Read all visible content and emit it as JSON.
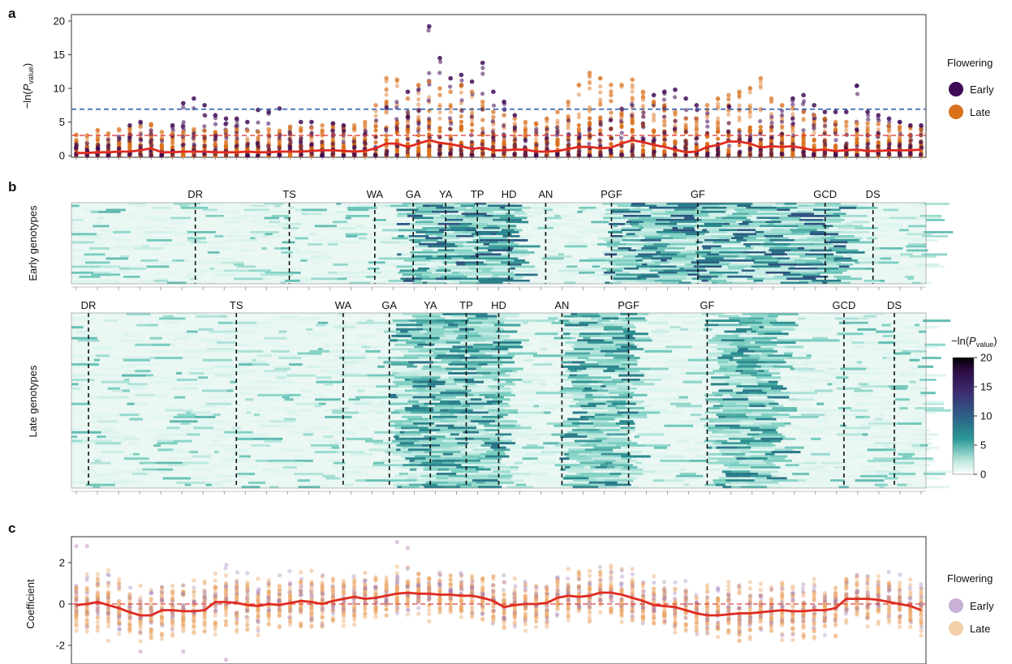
{
  "panels": {
    "a": "a",
    "b": "b",
    "c": "c"
  },
  "colors": {
    "early": "#3f0b57",
    "late": "#d9711c",
    "early_light": "#c9b0d6",
    "late_light": "#f3cfa8",
    "mean_line": "#e02b20",
    "threshold_blue": "#2f5dae",
    "threshold_red": "#e04040",
    "heatmap_stops": [
      "#ffffff",
      "#7fd0c4",
      "#2a8c8e",
      "#3e3a7a",
      "#3a0f4f",
      "#000000"
    ]
  },
  "chart_data": [
    {
      "type": "scatter",
      "id": "a",
      "ylabel": "-ln(P_value)",
      "ylim": [
        0,
        20
      ],
      "yticks": [
        0,
        5,
        10,
        15,
        20
      ],
      "n_positions": 80,
      "thresholds": {
        "blue_dashed": 6.9,
        "red_dashed": 3.0
      },
      "mean_line": [
        0.4,
        0.4,
        0.5,
        0.5,
        0.6,
        0.6,
        0.8,
        1.1,
        0.5,
        0.5,
        0.6,
        0.6,
        0.6,
        0.5,
        0.5,
        0.5,
        0.6,
        0.5,
        0.5,
        0.6,
        0.6,
        0.6,
        0.7,
        0.8,
        0.8,
        0.7,
        0.6,
        0.7,
        1.1,
        1.8,
        1.8,
        1.3,
        1.8,
        2.3,
        1.9,
        1.7,
        1.4,
        1.0,
        1.2,
        0.8,
        0.8,
        0.9,
        0.9,
        0.6,
        0.6,
        0.7,
        1.0,
        1.3,
        1.3,
        1.1,
        1.2,
        1.8,
        2.3,
        2.0,
        1.6,
        1.3,
        0.9,
        0.5,
        0.6,
        1.3,
        1.6,
        2.1,
        2.1,
        1.8,
        1.2,
        1.4,
        1.3,
        1.4,
        1.1,
        0.8,
        0.9,
        0.7,
        0.8,
        0.9,
        0.7,
        0.7,
        0.8,
        0.8,
        0.8,
        0.9
      ],
      "max_late": [
        3.1,
        3.0,
        3.8,
        3.3,
        3.9,
        4.1,
        4.3,
        4.7,
        3.5,
        3.3,
        3.5,
        3.9,
        3.7,
        3.5,
        3.7,
        3.9,
        3.7,
        3.5,
        3.9,
        3.7,
        4.3,
        4.1,
        4.1,
        4.5,
        4.7,
        4.3,
        4.5,
        5.0,
        7.5,
        11.5,
        11.3,
        8.5,
        10.5,
        11.0,
        10.0,
        9.5,
        10.5,
        9.5,
        8.0,
        6.5,
        6.0,
        5.5,
        5.0,
        4.8,
        5.5,
        6.5,
        8.0,
        10.5,
        12.3,
        11.5,
        10.5,
        10.5,
        11.3,
        9.5,
        8.0,
        7.5,
        6.5,
        5.5,
        5.5,
        7.5,
        8.5,
        9.0,
        9.5,
        10.0,
        11.5,
        8.5,
        7.5,
        7.0,
        6.5,
        6.0,
        5.5,
        5.0,
        5.0,
        4.8,
        4.8,
        4.7,
        4.5,
        4.3,
        4.3,
        4.0
      ],
      "max_early": [
        1.8,
        2.2,
        2.5,
        2.8,
        3.0,
        4.5,
        5.0,
        3.8,
        3.2,
        4.5,
        7.8,
        8.5,
        7.5,
        6.0,
        5.5,
        5.5,
        5.0,
        6.8,
        6.5,
        7.0,
        4.0,
        5.0,
        5.0,
        4.5,
        4.8,
        4.5,
        4.5,
        4.5,
        6.0,
        7.5,
        8.0,
        9.5,
        10.0,
        19.2,
        14.5,
        11.5,
        12.0,
        11.0,
        13.8,
        9.5,
        8.0,
        6.0,
        4.5,
        4.8,
        5.0,
        5.5,
        5.5,
        5.0,
        5.5,
        5.5,
        6.5,
        7.5,
        8.0,
        8.5,
        9.0,
        9.5,
        9.8,
        8.5,
        7.5,
        7.0,
        7.5,
        8.0,
        7.5,
        6.5,
        6.0,
        6.5,
        7.0,
        8.5,
        9.0,
        7.5,
        6.5,
        6.5,
        6.5,
        10.4,
        6.5,
        6.0,
        5.5,
        5.0,
        4.5,
        4.5
      ],
      "legend": {
        "title": "Flowering",
        "entries": [
          "Early",
          "Late"
        ]
      }
    },
    {
      "type": "heatmap",
      "id": "b",
      "rows": [
        {
          "label": "Early genotypes",
          "stages": [
            "DR",
            "TS",
            "WA",
            "GA",
            "YA",
            "TP",
            "HD",
            "AN",
            "PGF",
            "GF",
            "GCD",
            "DS"
          ],
          "positions": [
            0.145,
            0.255,
            0.355,
            0.4,
            0.438,
            0.475,
            0.512,
            0.555,
            0.632,
            0.733,
            0.882,
            0.938
          ]
        },
        {
          "label": "Late genotypes",
          "stages": [
            "DR",
            "TS",
            "WA",
            "GA",
            "YA",
            "TP",
            "HD",
            "AN",
            "PGF",
            "GF",
            "GCD",
            "DS"
          ],
          "positions": [
            0.02,
            0.193,
            0.318,
            0.372,
            0.42,
            0.462,
            0.5,
            0.574,
            0.652,
            0.744,
            0.904,
            0.963
          ]
        }
      ],
      "active_bands_early": [
        [
          0.38,
          0.52
        ],
        [
          0.62,
          0.9
        ]
      ],
      "active_bands_late": [
        [
          0.37,
          0.5
        ],
        [
          0.57,
          0.65
        ],
        [
          0.74,
          0.82
        ]
      ],
      "colorbar": {
        "label": "-ln(P_value)",
        "ticks": [
          0,
          5,
          10,
          15,
          20
        ],
        "range": [
          0,
          20
        ]
      }
    },
    {
      "type": "scatter",
      "id": "c",
      "ylabel": "Coefficient",
      "ylim": [
        -3,
        3.2
      ],
      "yticks": [
        -2,
        0,
        2
      ],
      "n_positions": 80,
      "mean_line": [
        -0.05,
        0.0,
        0.1,
        -0.05,
        -0.2,
        -0.4,
        -0.55,
        -0.55,
        -0.3,
        -0.3,
        -0.35,
        -0.35,
        -0.3,
        0.1,
        0.1,
        0.05,
        -0.05,
        -0.1,
        0.0,
        -0.05,
        0.05,
        0.15,
        0.1,
        0.0,
        0.15,
        0.25,
        0.35,
        0.25,
        0.3,
        0.4,
        0.5,
        0.55,
        0.5,
        0.5,
        0.45,
        0.45,
        0.4,
        0.4,
        0.3,
        0.15,
        -0.15,
        -0.05,
        0.0,
        0.0,
        0.05,
        0.3,
        0.4,
        0.35,
        0.4,
        0.55,
        0.55,
        0.45,
        0.3,
        0.15,
        -0.05,
        -0.1,
        -0.15,
        -0.3,
        -0.45,
        -0.55,
        -0.55,
        -0.5,
        -0.45,
        -0.45,
        -0.4,
        -0.35,
        -0.3,
        -0.35,
        -0.35,
        -0.3,
        -0.3,
        -0.2,
        0.25,
        0.25,
        0.25,
        0.2,
        0.1,
        0.0,
        -0.1,
        -0.3
      ],
      "spread": [
        1.1,
        1.3,
        1.4,
        1.3,
        1.2,
        1.1,
        1.0,
        1.0,
        1.1,
        1.1,
        1.0,
        1.2,
        1.3,
        1.3,
        1.2,
        1.1,
        1.2,
        1.1,
        1.0,
        1.0,
        1.1,
        1.2,
        1.1,
        1.1,
        1.1,
        1.1,
        1.0,
        1.0,
        1.0,
        1.0,
        0.9,
        0.9,
        0.9,
        0.9,
        0.9,
        0.9,
        0.9,
        0.9,
        0.9,
        1.0,
        1.0,
        1.0,
        1.0,
        1.1,
        1.1,
        1.0,
        1.0,
        1.0,
        1.0,
        1.0,
        1.0,
        1.0,
        1.0,
        1.0,
        1.0,
        1.0,
        1.0,
        1.1,
        1.1,
        1.1,
        1.1,
        1.1,
        1.1,
        1.1,
        1.1,
        1.1,
        1.1,
        1.1,
        1.1,
        1.1,
        1.1,
        1.1,
        1.0,
        1.0,
        1.0,
        1.0,
        1.0,
        1.0,
        1.0,
        1.0
      ],
      "legend": {
        "title": "Flowering",
        "entries": [
          "Early",
          "Late"
        ]
      }
    }
  ]
}
